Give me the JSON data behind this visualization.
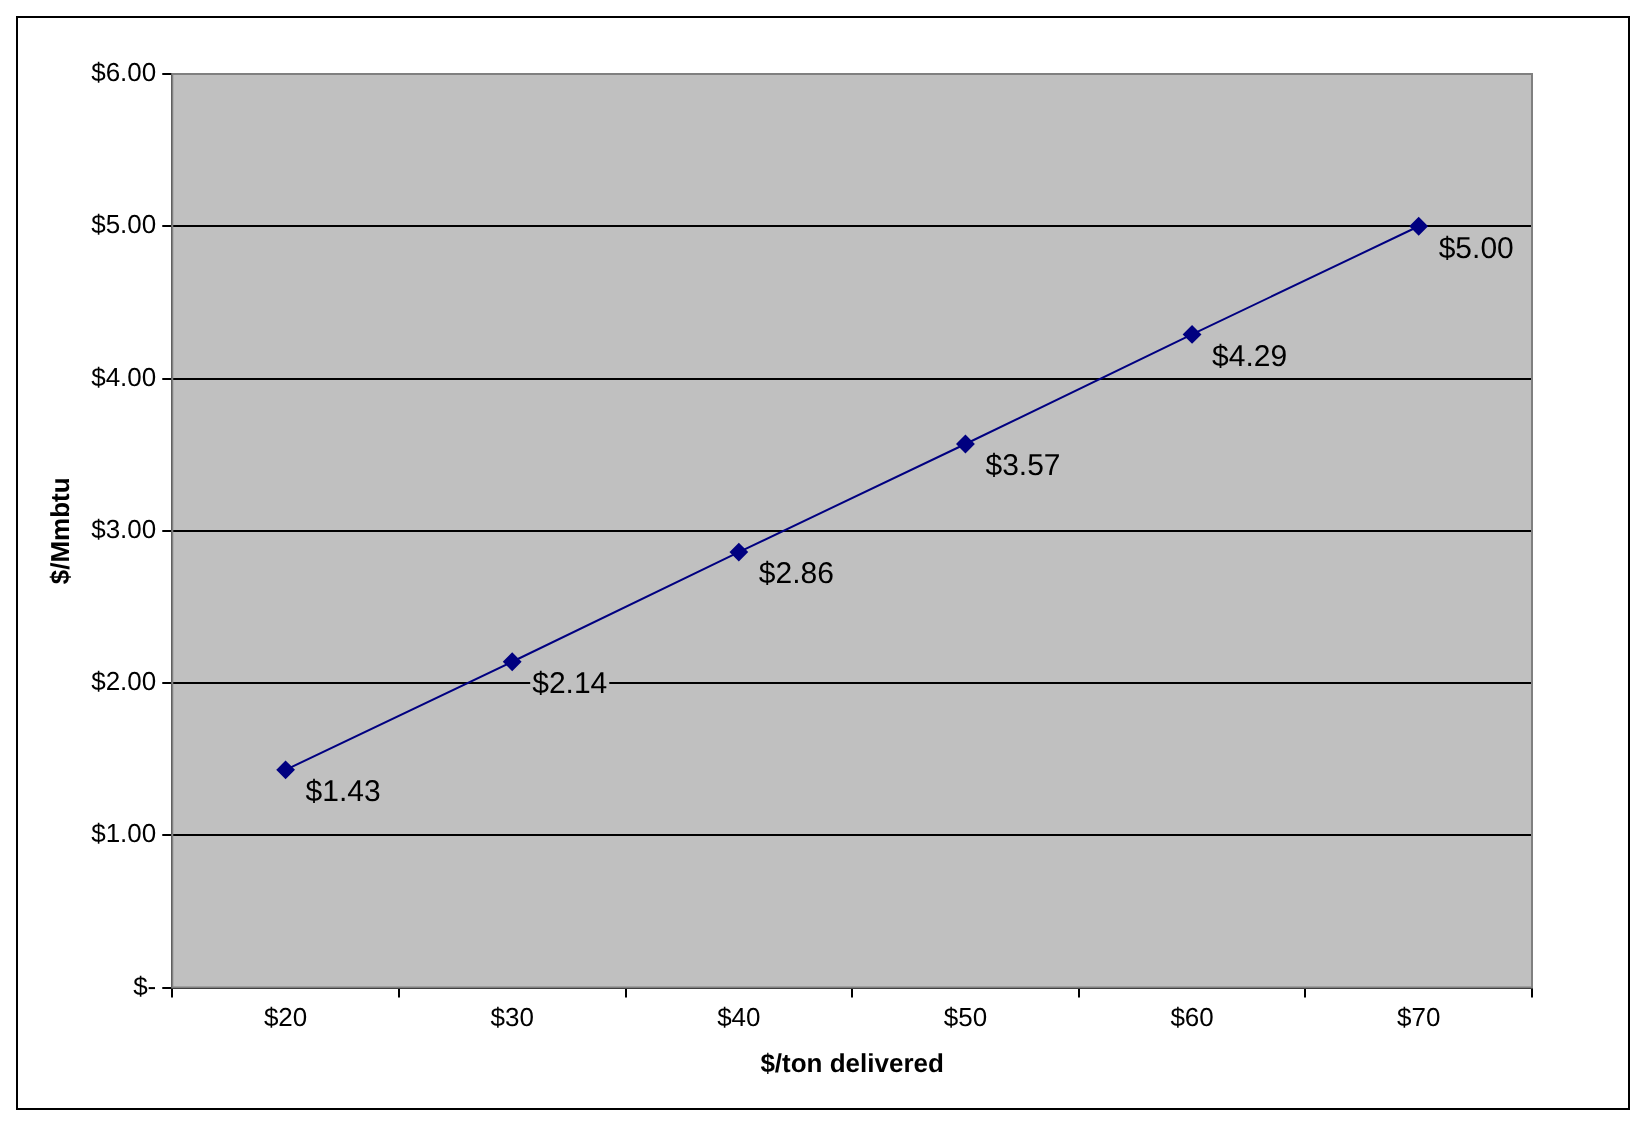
{
  "chart_data": {
    "type": "line",
    "xlabel": "$/ton delivered",
    "ylabel": "$/Mmbtu",
    "categories": [
      "$20",
      "$30",
      "$40",
      "$50",
      "$60",
      "$70"
    ],
    "series": [
      {
        "color": "#000080",
        "values": [
          1.43,
          2.14,
          2.86,
          3.57,
          4.29,
          5.0
        ],
        "value_labels": [
          "$1.43",
          "$2.14",
          "$2.86",
          "$3.57",
          "$4.29",
          "$5.00"
        ]
      }
    ],
    "ylim": [
      0,
      6
    ],
    "yticks": [
      {
        "value": 0,
        "label": "$-"
      },
      {
        "value": 1,
        "label": "$1.00"
      },
      {
        "value": 2,
        "label": "$2.00"
      },
      {
        "value": 3,
        "label": "$3.00"
      },
      {
        "value": 4,
        "label": "$4.00"
      },
      {
        "value": 5,
        "label": "$5.00"
      },
      {
        "value": 6,
        "label": "$6.00"
      }
    ],
    "grid": "y",
    "legend": false,
    "marker": "diamond",
    "line_style": "solid"
  }
}
